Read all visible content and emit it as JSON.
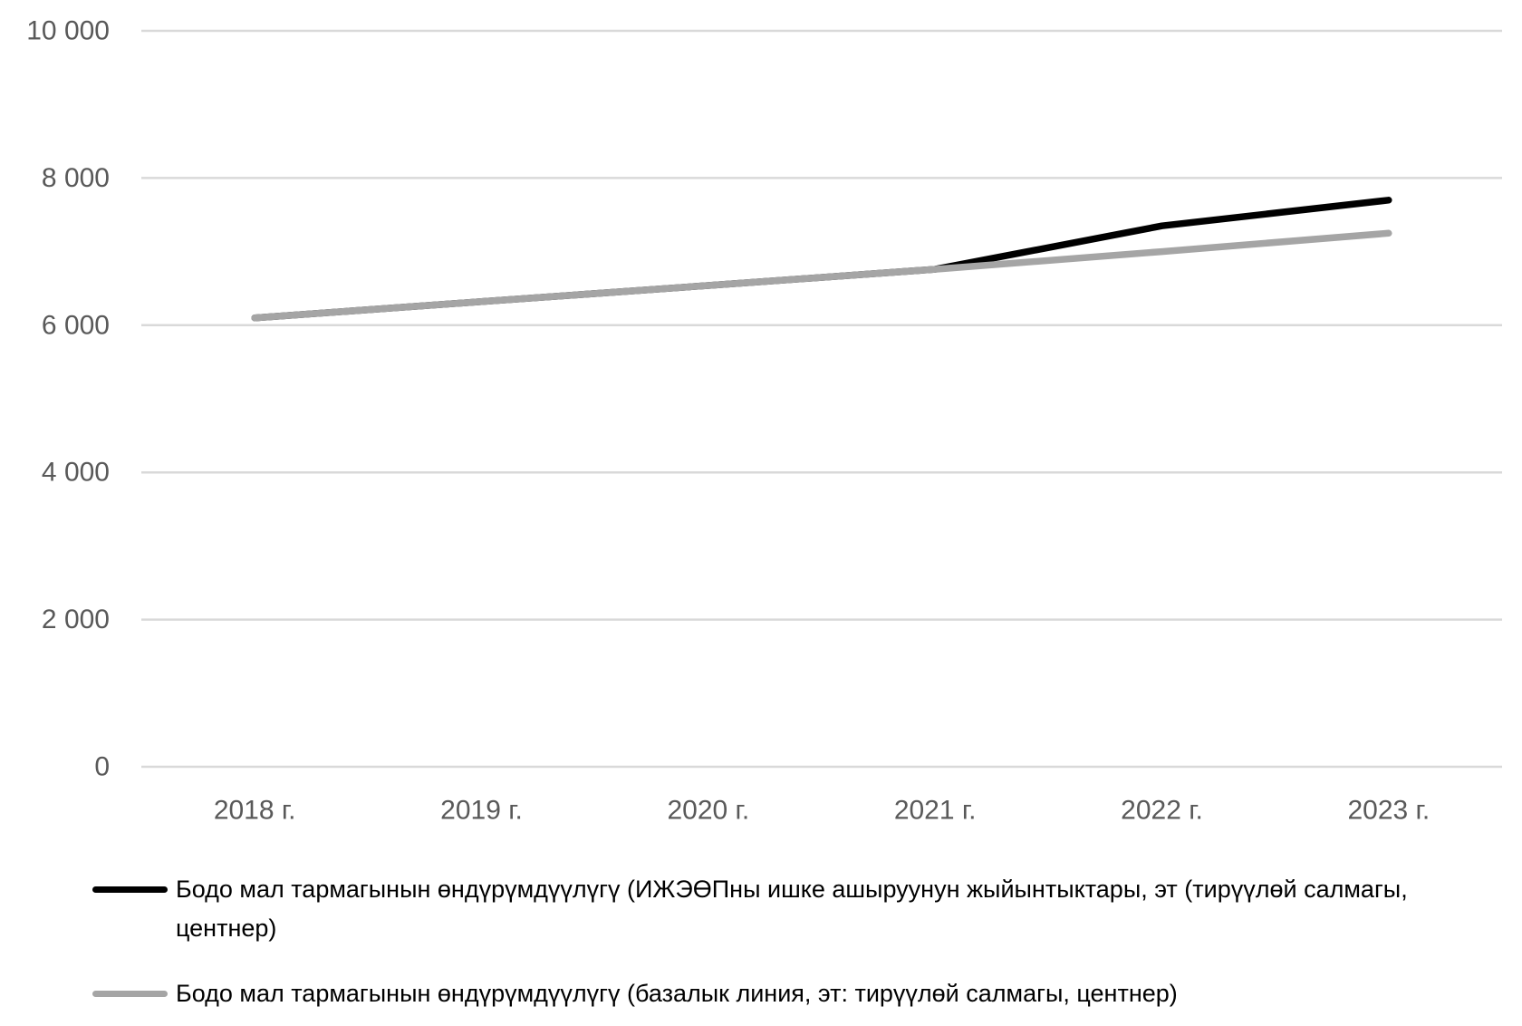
{
  "chart_data": {
    "type": "line",
    "title": "",
    "xlabel": "",
    "ylabel": "",
    "categories": [
      "2018 г.",
      "2019 г.",
      "2020 г.",
      "2021 г.",
      "2022 г.",
      "2023 г."
    ],
    "ylim": [
      0,
      10000
    ],
    "yticks": [
      0,
      2000,
      4000,
      6000,
      8000,
      10000
    ],
    "ytick_labels": [
      "0",
      "2 000",
      "4 000",
      "6 000",
      "8 000",
      "10 000"
    ],
    "grid": true,
    "legend_position": "bottom",
    "series": [
      {
        "name": "Бодо мал тармагынын өндүрүмдүүлүгү (ИЖЭӨПны ишке ашыруунун жыйынтыктары, эт (тирүүлөй салмагы, центнер)",
        "color": "#000000",
        "values": [
          6100,
          6320,
          6540,
          6760,
          7350,
          7700
        ]
      },
      {
        "name": "Бодо мал тармагынын өндүрүмдүүлүгү (базалык линия, эт: тирүүлөй салмагы, центнер)",
        "color": "#a5a5a5",
        "values": [
          6100,
          6320,
          6540,
          6760,
          7000,
          7250
        ]
      }
    ],
    "colors": {
      "grid": "#d9d9d9",
      "text": "#595959"
    }
  }
}
